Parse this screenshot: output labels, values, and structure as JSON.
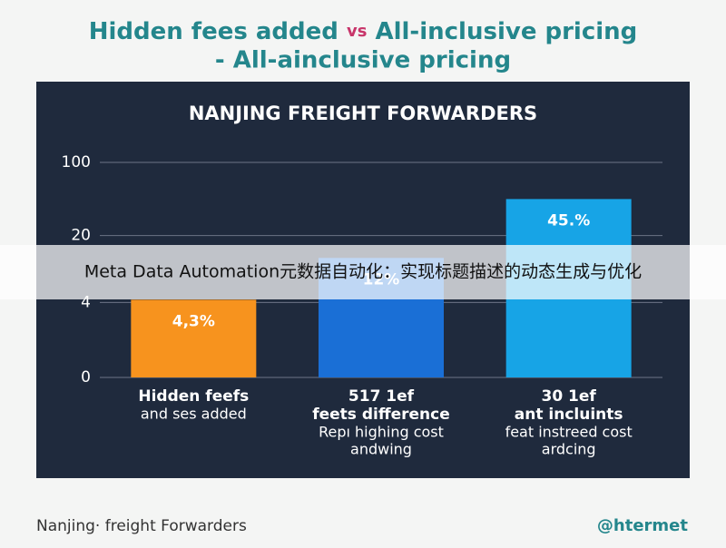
{
  "chart_data": {
    "type": "bar",
    "title": [
      "Hidden fees added",
      "vs",
      "All-inclusive pricing"
    ],
    "subtitle": "- All-ainclusive pricing",
    "panel_title": "NANJING FREIGHT FORWARDERS",
    "categories": [
      [
        "Hidden feefs"
      ],
      [
        "517 1ef",
        "feets difference"
      ],
      [
        "30 1ef",
        "ant incluints"
      ]
    ],
    "sublabels": [
      [
        "and ses added"
      ],
      [
        "Repı highing cost",
        "andwing"
      ],
      [
        "feat instreed cost",
        "ardcing"
      ]
    ],
    "values": [
      4.3,
      12,
      45
    ],
    "value_labels": [
      "4,3%",
      "12%",
      "45.%"
    ],
    "colors": [
      "#f7931e",
      "#1a6fd6",
      "#17a4e6"
    ],
    "ylim": [
      0,
      100
    ],
    "yticks": [
      0,
      4,
      20,
      100
    ],
    "yscale": "symlog",
    "grid": true,
    "overlay": "Meta Data Automation元数据自动化：实现标题描述的动态生成与优化",
    "footer": "Nanjing· freight Forwarders",
    "handle": "@htermet"
  }
}
